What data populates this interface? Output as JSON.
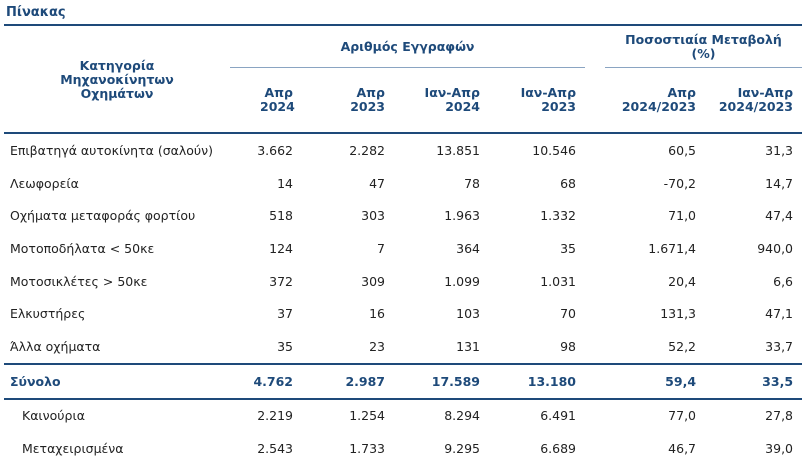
{
  "title": "Πίνακας",
  "headers": {
    "category": "Κατηγορία Μηχανοκίνητων Οχημάτων",
    "group_registrations": "Αριθμός Εγγραφών",
    "group_change": "Ποσοστιαία Μεταβολή (%)",
    "cols": [
      "Απρ 2024",
      "Απρ 2023",
      "Ιαν-Απρ 2024",
      "Ιαν-Απρ 2023",
      "Απρ 2024/2023",
      "Ιαν-Απρ 2024/2023"
    ]
  },
  "rows": [
    {
      "label": "Επιβατηγά αυτοκίνητα (σαλούν)",
      "c1": "3.662",
      "c2": "2.282",
      "c3": "13.851",
      "c4": "10.546",
      "c5": "60,5",
      "c6": "31,3"
    },
    {
      "label": "Λεωφορεία",
      "c1": "14",
      "c2": "47",
      "c3": "78",
      "c4": "68",
      "c5": "-70,2",
      "c6": "14,7"
    },
    {
      "label": "Οχήματα μεταφοράς φορτίου",
      "c1": "518",
      "c2": "303",
      "c3": "1.963",
      "c4": "1.332",
      "c5": "71,0",
      "c6": "47,4"
    },
    {
      "label": "Μοτοποδήλατα < 50κε",
      "c1": "124",
      "c2": "7",
      "c3": "364",
      "c4": "35",
      "c5": "1.671,4",
      "c6": "940,0"
    },
    {
      "label": "Μοτοσικλέτες > 50κε",
      "c1": "372",
      "c2": "309",
      "c3": "1.099",
      "c4": "1.031",
      "c5": "20,4",
      "c6": "6,6"
    },
    {
      "label": "Ελκυστήρες",
      "c1": "37",
      "c2": "16",
      "c3": "103",
      "c4": "70",
      "c5": "131,3",
      "c6": "47,1"
    },
    {
      "label": "Άλλα οχήματα",
      "c1": "35",
      "c2": "23",
      "c3": "131",
      "c4": "98",
      "c5": "52,2",
      "c6": "33,7"
    }
  ],
  "total": {
    "label": "Σύνολο",
    "c1": "4.762",
    "c2": "2.987",
    "c3": "17.589",
    "c4": "13.180",
    "c5": "59,4",
    "c6": "33,5"
  },
  "subrows": [
    {
      "label": "Καινούρια",
      "c1": "2.219",
      "c2": "1.254",
      "c3": "8.294",
      "c4": "6.491",
      "c5": "77,0",
      "c6": "27,8"
    },
    {
      "label": "Μεταχειρισμένα",
      "c1": "2.543",
      "c2": "1.733",
      "c3": "9.295",
      "c4": "6.689",
      "c5": "46,7",
      "c6": "39,0"
    }
  ]
}
